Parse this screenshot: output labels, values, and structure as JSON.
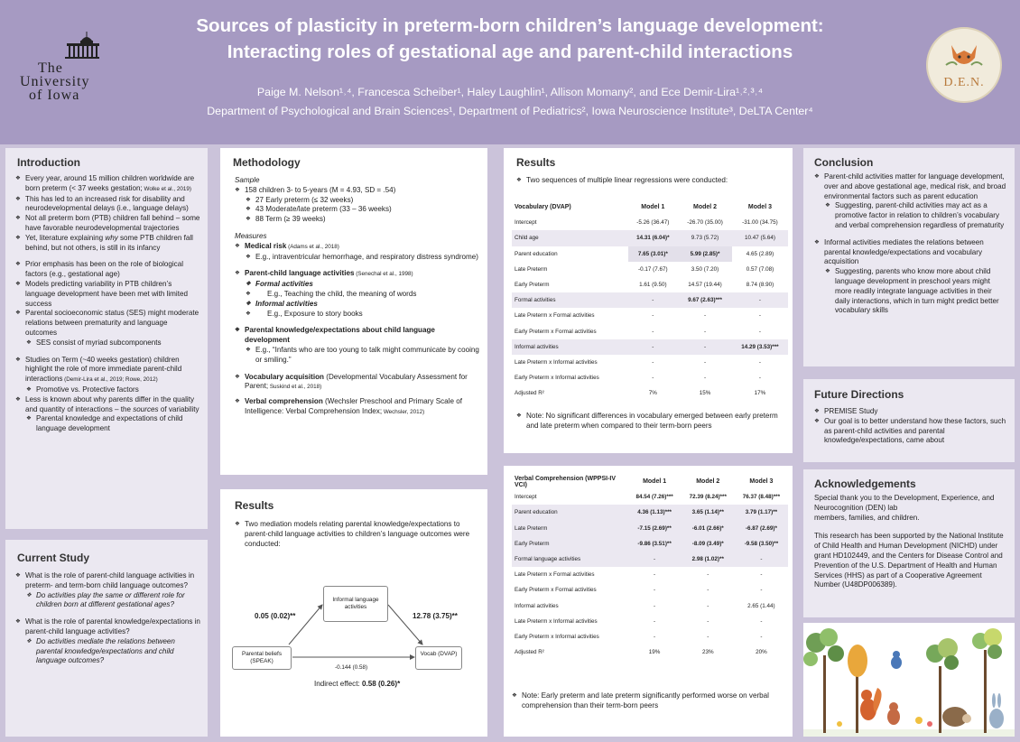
{
  "header": {
    "title_line1": "Sources of plasticity in preterm-born children’s language development:",
    "title_line2": "Interacting roles of gestational age and parent-child interactions",
    "authors": "Paige M. Nelson¹˒⁴, Francesca Scheiber¹, Haley Laughlin¹, Allison Momany², and Ece Demir-Lira¹˒²˒³˒⁴",
    "affiliations": "Department of Psychological and Brain Sciences¹, Department of Pediatrics², Iowa Neuroscience Institute³, DeLTA Center⁴",
    "logo_left": [
      "The",
      "University",
      "of Iowa"
    ],
    "logo_right": "D.E.N."
  },
  "intro": {
    "title": "Introduction",
    "b1": "Every year, around 15 million children worldwide are born preterm (< 37 weeks gestation;",
    "b1c": " Wolke et al., 2019)",
    "b2": "This has led to an increased risk for disability and neurodevelopmental delays (i.e., language delays)",
    "b3": "Not all preterm born (PTB) children fall behind – some have favorable neurodevelopmental trajectories",
    "b4a": "Yet, literature explaining ",
    "b4i": "why",
    "b4b": " some PTB children fall behind, but not others, is still in its infancy",
    "b5": "Prior emphasis has been on the role of biological factors (e.g., gestational age)",
    "b6": "Models predicting variability in PTB children’s language development have been met with limited success",
    "b7": "Parental socioeconomic status (SES) might moderate relations between prematurity and language outcomes",
    "b7s": "SES consist of myriad subcomponents",
    "b8": "Studies on Term (~40 weeks gestation) children highlight the role of more immediate parent-child interactions",
    "b8c": " (Demir-Lira et al., 2019; Rowe, 2012)",
    "b8s": "Promotive vs. Protective factors",
    "b9": "Less is known about why parents differ in the quality and quantity of interactions – the",
    "b9i": "sources",
    "b9b": " of variability",
    "b9s": "Parental knowledge and expectations of child language development"
  },
  "current": {
    "title": "Current Study",
    "q1": "What is the role of parent-child language activities in preterm- and term-born child language outcomes?",
    "q1s": "Do activities play the same or different role for children born at different gestational ages?",
    "q2": "What is the role of parental knowledge/expectations in parent-child language activities?",
    "q2s": "Do activities mediate the relations between parental knowledge/expectations and child language outcomes?"
  },
  "method": {
    "title": "Methodology",
    "sample_label": "Sample",
    "s1": "158 children 3- to 5-years (M = 4.93, SD = .54)",
    "s2": "27 Early preterm (≤ 32 weeks)",
    "s3": "43 Moderate/late preterm (33 – 36 weeks)",
    "s4": "88 Term (≥ 39 weeks)",
    "measures_label": "Measures",
    "m1": "Medical risk",
    "m1c": " (Adams et al., 2018)",
    "m1s": "E.g., intraventricular hemorrhage, and respiratory distress syndrome)",
    "m2": "Parent-child language activities",
    "m2c": " (Senechal et al., 1998)",
    "m2a": "Formal activities",
    "m2as": "E.g., Teaching the child, the meaning of words",
    "m2b": "Informal activities",
    "m2bs": "E.g., Exposure to story books",
    "m3": "Parental knowledge/expectations about child language development",
    "m3s": "E.g., “Infants who are too young to talk might communicate by cooing or smiling.”",
    "m4": "Vocabulary acquisition",
    "m4t": " (Developmental Vocabulary Assessment for Parent;",
    "m4c": " Suskind et al., 2018)",
    "m5": "Verbal comprehension",
    "m5t": " (Wechsler Preschool and Primary Scale of Intelligence: Verbal Comprehension Index;",
    "m5c": " Wechsler, 2012)"
  },
  "results_med": {
    "title": "Results",
    "intro": "Two mediation models relating parental knowledge/expectations to parent-child language activities to children’s language outcomes were conducted:",
    "node_mid": "Informal language activities",
    "node_left": "Parental beliefs (SPEAK)",
    "node_right": "Vocab (DVAP)",
    "path_a": "0.05 (0.02)**",
    "path_b": "12.78 (3.75)**",
    "path_c": "-0.144 (0.58)",
    "indirect_label": "Indirect effect: ",
    "indirect_val": "0.58 (0.26)*"
  },
  "results_vocab": {
    "title": "Results",
    "intro": "Two sequences of multiple linear regressions were conducted:",
    "headers": [
      "Vocabulary (DVAP)",
      "Model 1",
      "Model 2",
      "Model 3"
    ],
    "rows": [
      [
        "Intercept",
        "-5.26 (36.47)",
        "-26.70 (35.00)",
        "-31.00 (34.75)"
      ],
      [
        "Child age",
        "14.31 (6.04)*",
        "9.73 (5.72)",
        "10.47 (5.64)"
      ],
      [
        "Parent education",
        "7.65 (3.01)*",
        "5.99 (2.85)*",
        "4.65 (2.89)"
      ],
      [
        "Late Preterm",
        "-0.17 (7.67)",
        "3.50 (7.20)",
        "0.57 (7.08)"
      ],
      [
        "Early Preterm",
        "1.61 (9.50)",
        "14.57 (19.44)",
        "8.74 (8.90)"
      ],
      [
        "Formal activities",
        "-",
        "9.67 (2.63)***",
        "-"
      ],
      [
        "Late Preterm x Formal activities",
        "-",
        "-",
        "-"
      ],
      [
        "Early Preterm x Formal activities",
        "-",
        "-",
        "-"
      ],
      [
        "Informal activities",
        "-",
        "-",
        "14.29 (3.53)***"
      ],
      [
        "Late Preterm x Informal activities",
        "-",
        "-",
        "-"
      ],
      [
        "Early Preterm x Informal activities",
        "-",
        "-",
        "-"
      ],
      [
        "Adjusted R²",
        "7%",
        "15%",
        "17%"
      ]
    ],
    "note": "Note: No significant differences in vocabulary emerged between early preterm and late preterm when compared to their term-born peers"
  },
  "results_verbal": {
    "headers": [
      "Verbal Comprehension (WPPSI-IV VCI)",
      "Model 1",
      "Model 2",
      "Model 3"
    ],
    "rows": [
      [
        "Intercept",
        "84.54 (7.26)***",
        "72.39 (8.24)***",
        "76.37 (8.48)***"
      ],
      [
        "Parent education",
        "4.36 (1.13)***",
        "3.65 (1.14)**",
        "3.79 (1.17)**"
      ],
      [
        "Late Preterm",
        "-7.15 (2.69)**",
        "-6.01 (2.66)*",
        "-6.87 (2.69)*"
      ],
      [
        "Early Preterm",
        "-9.86 (3.51)**",
        "-8.09 (3.49)*",
        "-9.58 (3.50)**"
      ],
      [
        "Formal language activities",
        "-",
        "2.98 (1.02)**",
        "-"
      ],
      [
        "Late Preterm x Formal activities",
        "-",
        "-",
        "-"
      ],
      [
        "Early Preterm x Formal activities",
        "-",
        "-",
        "-"
      ],
      [
        "Informal activities",
        "-",
        "-",
        "2.65 (1.44)"
      ],
      [
        "Late Preterm x Informal activities",
        "-",
        "-",
        "-"
      ],
      [
        "Early Preterm x Informal activities",
        "-",
        "-",
        "-"
      ],
      [
        "Adjusted R²",
        "19%",
        "23%",
        "20%"
      ]
    ],
    "note": "Note: Early preterm and late preterm significantly performed worse on verbal comprehension than their term-born peers"
  },
  "conclusion": {
    "title": "Conclusion",
    "c1": "Parent-child activities matter for language development, over and above gestational age, medical risk, and broad environmental factors such as parent education",
    "c1s": "Suggesting, parent-child activities may act as a promotive factor in relation to children’s vocabulary and verbal comprehension regardless of prematurity",
    "c2": "Informal activities mediates the relations between parental knowledge/expectations and vocabulary acquisition",
    "c2s": "Suggesting, parents who know more about child language development in preschool years might more readily integrate language activities in their daily interactions, which in turn might predict better vocabulary skills"
  },
  "future": {
    "title": "Future Directions",
    "f1": "PREMISE Study",
    "f2": "Our goal is to better understand how these factors, such as parent-child activities and parental knowledge/expectations, came about"
  },
  "ack": {
    "title": "Acknowledgements",
    "p1": "Special thank you to the Development, Experience, and Neurocognition (DEN) lab",
    "p1b": "members, families, and children.",
    "p2": "This research has been supported by the National Institute of Child Health and Human Development (NICHD) under grant HD102449, and the Centers for Disease Control and Prevention of the U.S. Department of Health and Human Services (HHS) as part of a Cooperative Agreement Number (U48DP006389)."
  },
  "colors": {
    "header": "#a69ac2",
    "panel": "#ebe8f1",
    "page": "#cbc3da"
  }
}
